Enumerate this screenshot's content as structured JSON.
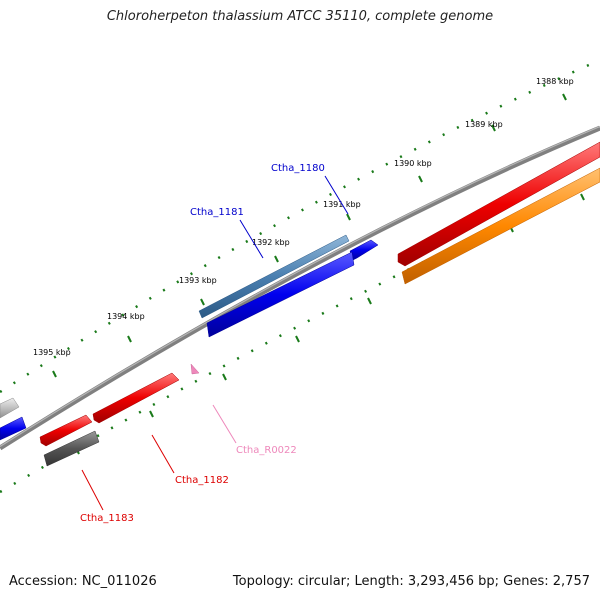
{
  "title": "Chloroherpeton thalassium ATCC 35110, complete genome",
  "footer": {
    "accession": "Accession: NC_011026",
    "stats": "Topology: circular; Length: 3,293,456 bp; Genes: 2,757"
  },
  "scale_labels": [
    "1388 kbp",
    "1389 kbp",
    "1390 kbp",
    "1391 kbp",
    "1392 kbp",
    "1393 kbp",
    "1394 kbp",
    "1395 kbp"
  ],
  "gene_labels": [
    {
      "id": "Ctha_1180",
      "text": "Ctha_1180",
      "color": "#0000cc"
    },
    {
      "id": "Ctha_1181",
      "text": "Ctha_1181",
      "color": "#0000cc"
    },
    {
      "id": "Ctha_R0022",
      "text": "Ctha_R0022",
      "color": "#ee88bb"
    },
    {
      "id": "Ctha_1182",
      "text": "Ctha_1182",
      "color": "#dd0000"
    },
    {
      "id": "Ctha_1183",
      "text": "Ctha_1183",
      "color": "#dd0000"
    }
  ],
  "colors": {
    "backbone": "#808080",
    "scale_ticks": "#1a7a1a",
    "gene_blue": "#0000ee",
    "gene_steelblue": "#4a7fb0",
    "gene_red": "#ee0000",
    "gene_orange": "#ff8800",
    "gene_gray": "#555555",
    "rna_pink": "#ee88bb"
  }
}
